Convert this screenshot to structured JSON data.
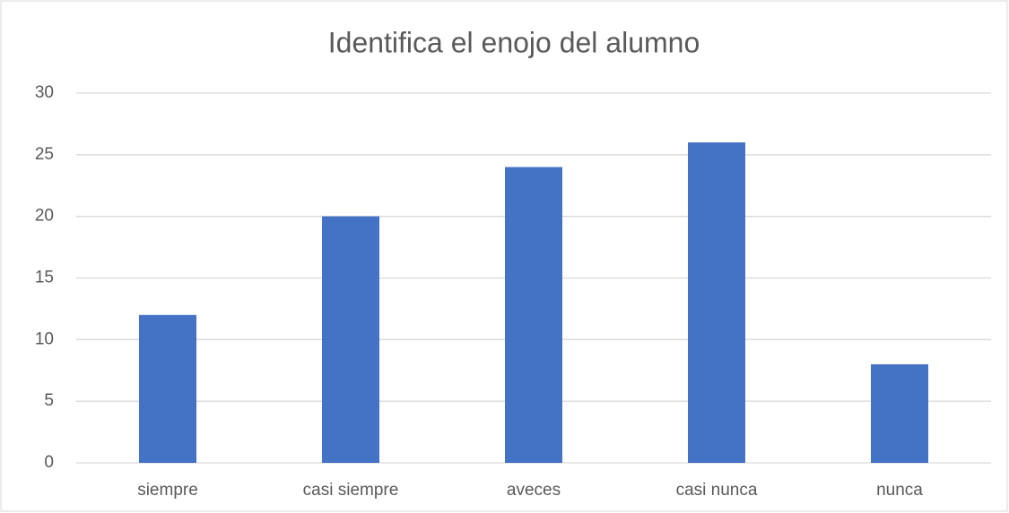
{
  "chart_data": {
    "type": "bar",
    "title": "Identifica el enojo del alumno",
    "categories": [
      "siempre",
      "casi siempre",
      "aveces",
      "casi nunca",
      "nunca"
    ],
    "values": [
      12,
      20,
      24,
      26,
      8
    ],
    "color": "#4472c4",
    "ylim": [
      0,
      30
    ],
    "yticks": [
      0,
      5,
      10,
      15,
      20,
      25,
      30
    ],
    "grid": true
  }
}
